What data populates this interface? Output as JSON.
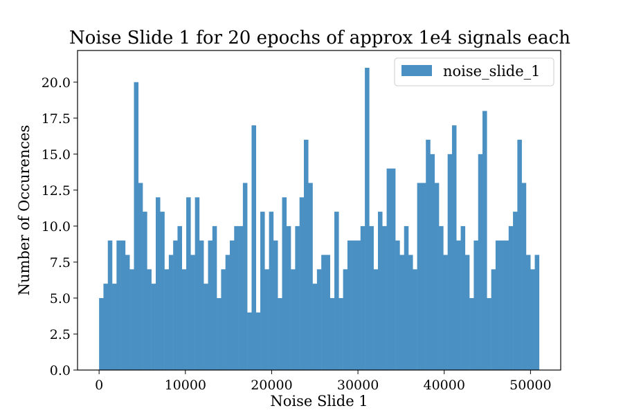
{
  "chart_data": {
    "type": "bar",
    "title": "Noise Slide 1 for 20 epochs of approx 1e4 signals each",
    "xlabel": "Noise Slide 1",
    "ylabel": "Number of Occurences",
    "xlim": [
      -2500,
      53500
    ],
    "ylim": [
      0,
      22.2
    ],
    "xticks": [
      0,
      10000,
      20000,
      30000,
      40000,
      50000
    ],
    "xtick_labels": [
      "0",
      "10000",
      "20000",
      "30000",
      "40000",
      "50000"
    ],
    "yticks": [
      0,
      2.5,
      5,
      7.5,
      10,
      12.5,
      15,
      17.5,
      20
    ],
    "ytick_labels": [
      "0.0",
      "2.5",
      "5.0",
      "7.5",
      "10.0",
      "12.5",
      "15.0",
      "17.5",
      "20.0"
    ],
    "grid": false,
    "legend_position": "top-right",
    "bin_range": [
      0,
      51000
    ],
    "series": [
      {
        "name": "noise_slide_1",
        "color": "#4a90c2",
        "values": [
          5,
          6,
          9,
          6,
          9,
          9,
          8,
          7,
          20,
          13,
          11,
          7,
          6,
          12,
          11,
          7,
          8,
          9,
          10,
          7,
          12,
          8,
          12,
          9,
          6,
          9,
          10,
          5,
          7,
          8,
          9,
          10,
          10,
          13,
          4,
          17,
          4,
          11,
          7,
          11,
          9,
          5,
          12,
          10,
          7,
          10,
          12,
          16,
          13,
          6,
          7,
          8,
          8,
          5,
          11,
          5,
          7,
          9,
          9,
          9,
          10,
          21,
          10,
          7,
          11,
          10,
          14,
          14,
          9,
          8,
          10,
          8,
          7,
          13,
          13,
          16,
          15,
          13,
          10,
          8,
          15,
          17,
          9,
          10,
          8,
          5,
          9,
          15,
          18,
          5,
          7,
          9,
          9,
          9,
          10,
          11,
          16,
          13,
          8,
          7,
          8
        ]
      }
    ]
  }
}
